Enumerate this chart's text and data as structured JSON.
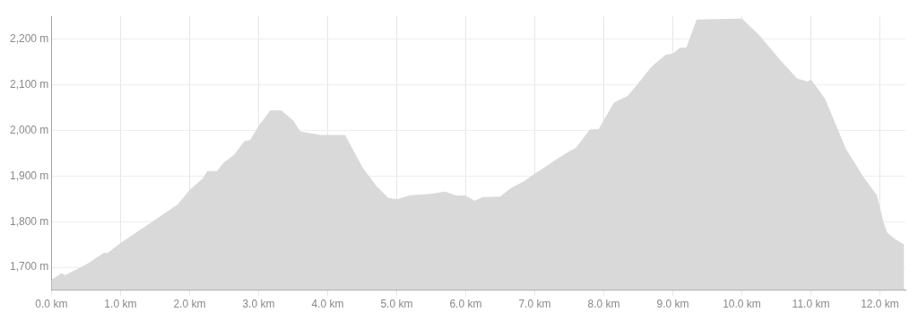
{
  "chart_data": {
    "type": "area",
    "x": [
      0,
      0.15,
      0.2,
      0.5,
      0.75,
      0.82,
      1.0,
      1.5,
      1.83,
      2.0,
      2.2,
      2.26,
      2.4,
      2.5,
      2.65,
      2.8,
      2.88,
      3.0,
      3.17,
      3.33,
      3.5,
      3.6,
      3.9,
      4.25,
      4.5,
      4.7,
      4.88,
      5.0,
      5.2,
      5.5,
      5.7,
      5.85,
      6.0,
      6.13,
      6.25,
      6.5,
      6.65,
      6.85,
      7.0,
      7.15,
      7.35,
      7.5,
      7.6,
      7.8,
      7.93,
      8.15,
      8.35,
      8.5,
      8.7,
      8.9,
      9.0,
      9.1,
      9.2,
      9.35,
      10.0,
      10.25,
      10.55,
      10.8,
      10.95,
      11.0,
      11.2,
      11.5,
      11.75,
      11.95,
      12.05,
      12.1,
      12.2,
      12.35
    ],
    "series": [
      {
        "color": "#d9d9d9",
        "values": [
          1672,
          1686,
          1682,
          1705,
          1730,
          1731,
          1752,
          1803,
          1837,
          1868,
          1895,
          1910,
          1910,
          1929,
          1946,
          1976,
          1978,
          2008,
          2043,
          2043,
          2021,
          1997,
          1989,
          1989,
          1919,
          1878,
          1851,
          1848,
          1857,
          1860,
          1865,
          1857,
          1856,
          1845,
          1853,
          1854,
          1872,
          1888,
          1904,
          1919,
          1939,
          1953,
          1961,
          2001,
          2002,
          2060,
          2075,
          2102,
          2140,
          2165,
          2167,
          2180,
          2180,
          2242,
          2244,
          2208,
          2154,
          2113,
          2106,
          2111,
          2069,
          1960,
          1899,
          1858,
          1797,
          1776,
          1763,
          1749
        ]
      }
    ],
    "xlim": [
      0,
      12.37
    ],
    "ylim": [
      1650,
      2250
    ],
    "xticks": [
      {
        "value": 0,
        "label": "0.0 km"
      },
      {
        "value": 1,
        "label": "1.0 km"
      },
      {
        "value": 2,
        "label": "2.0 km"
      },
      {
        "value": 3,
        "label": "3.0 km"
      },
      {
        "value": 4,
        "label": "4.0 km"
      },
      {
        "value": 5,
        "label": "5.0 km"
      },
      {
        "value": 6,
        "label": "6.0 km"
      },
      {
        "value": 7,
        "label": "7.0 km"
      },
      {
        "value": 8,
        "label": "8.0 km"
      },
      {
        "value": 9,
        "label": "9.0 km"
      },
      {
        "value": 10,
        "label": "10.0 km"
      },
      {
        "value": 11,
        "label": "11.0 km"
      },
      {
        "value": 12,
        "label": "12.0 km"
      }
    ],
    "yticks": [
      {
        "value": 1700,
        "label": "1,700 m"
      },
      {
        "value": 1800,
        "label": "1,800 m"
      },
      {
        "value": 1900,
        "label": "1,900 m"
      },
      {
        "value": 2000,
        "label": "2,000 m"
      },
      {
        "value": 2100,
        "label": "2,100 m"
      },
      {
        "value": 2200,
        "label": "2,200 m"
      }
    ],
    "grid": true
  }
}
